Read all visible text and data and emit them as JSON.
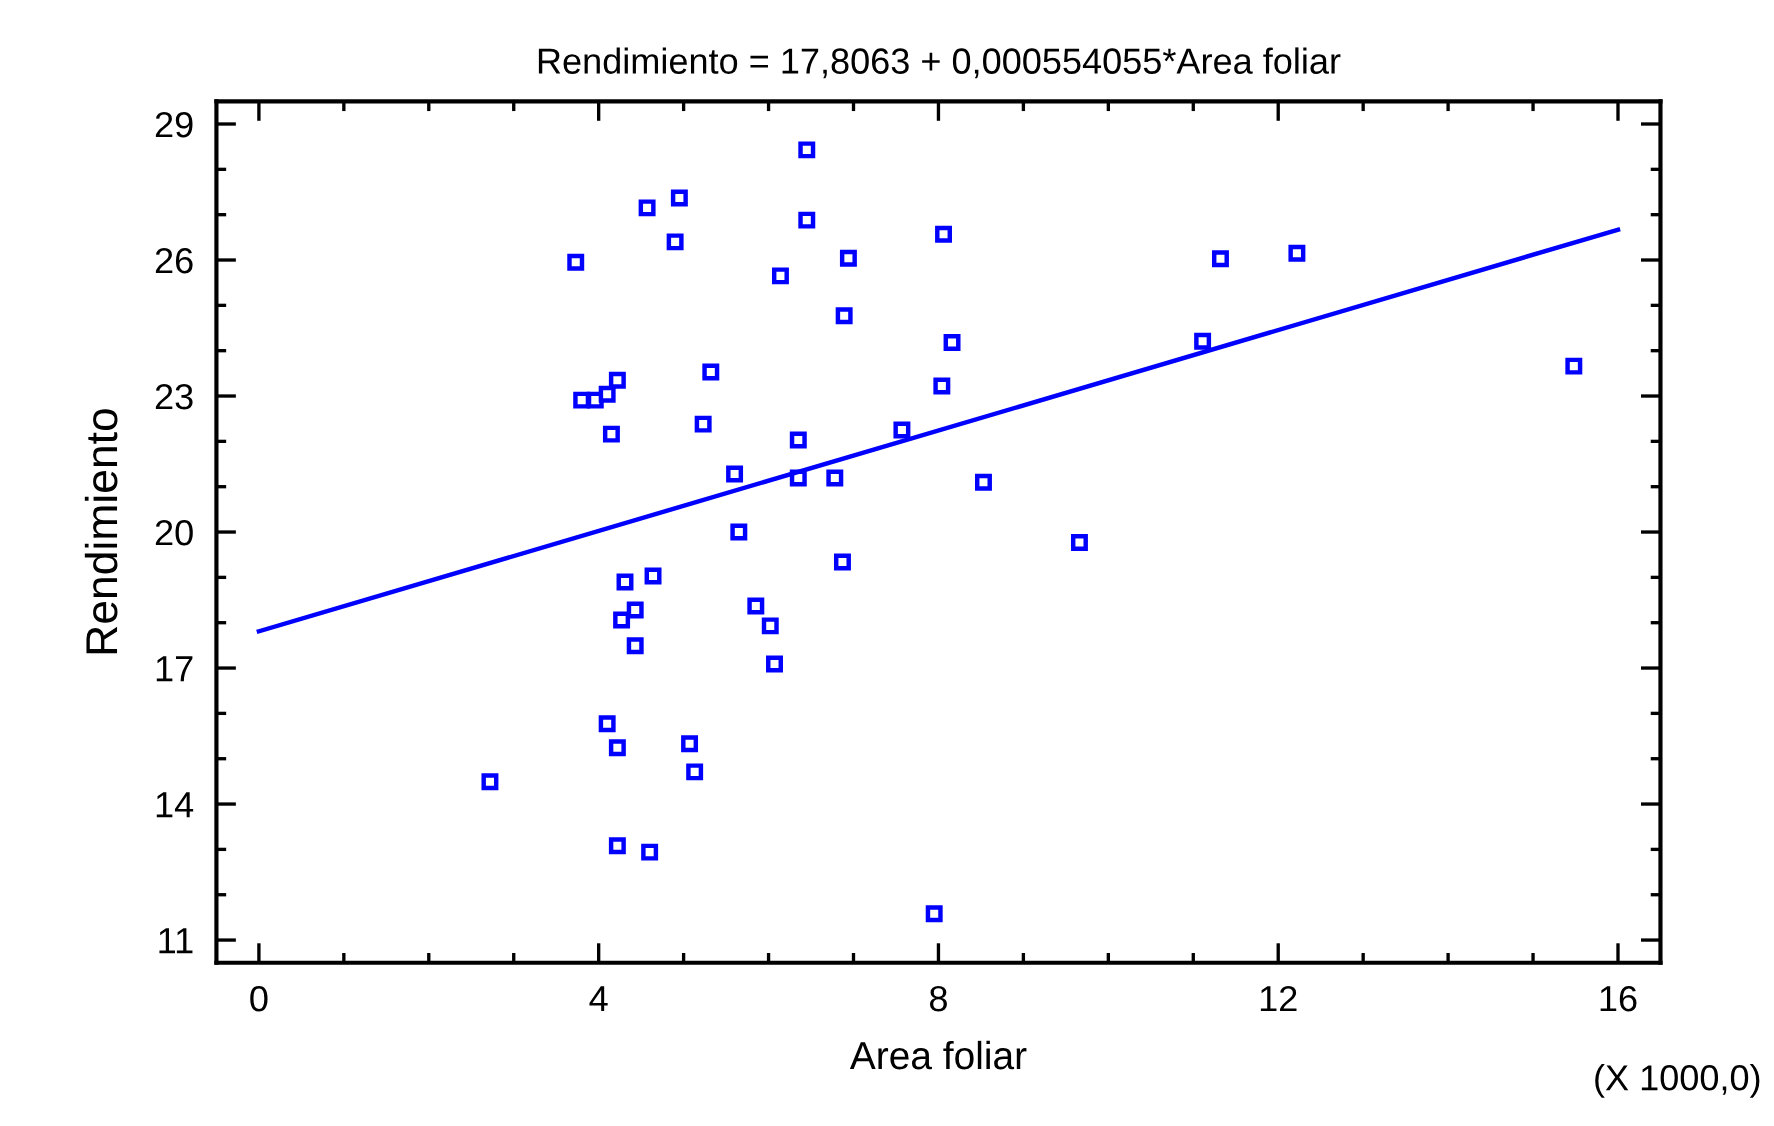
{
  "chart_data": {
    "type": "scatter",
    "title": "Rendimiento = 17,8063 + 0,000554055*Area foliar",
    "xlabel": "Area foliar",
    "ylabel": "Rendimiento",
    "annotations": [
      "(X 1000,0)"
    ],
    "xlim": [
      -0.5,
      16.5
    ],
    "ylim": [
      10.5,
      29.5
    ],
    "xticks": [
      0,
      {
        "value": 1,
        "label": null
      },
      {
        "value": 2,
        "label": null
      },
      {
        "value": 3,
        "label": null
      },
      4,
      {
        "value": 5,
        "label": null
      },
      {
        "value": 6,
        "label": null
      },
      {
        "value": 7,
        "label": null
      },
      8,
      {
        "value": 9,
        "label": null
      },
      {
        "value": 10,
        "label": null
      },
      {
        "value": 11,
        "label": null
      },
      12,
      {
        "value": 13,
        "label": null
      },
      {
        "value": 14,
        "label": null
      },
      {
        "value": 15,
        "label": null
      },
      16
    ],
    "yticks": [
      11,
      {
        "value": 12,
        "label": null
      },
      {
        "value": 13,
        "label": null
      },
      14,
      {
        "value": 15,
        "label": null
      },
      {
        "value": 16,
        "label": null
      },
      17,
      {
        "value": 18,
        "label": null
      },
      {
        "value": 19,
        "label": null
      },
      20,
      {
        "value": 21,
        "label": null
      },
      {
        "value": 22,
        "label": null
      },
      23,
      {
        "value": 24,
        "label": null
      },
      {
        "value": 25,
        "label": null
      },
      26,
      {
        "value": 27,
        "label": null
      },
      {
        "value": 28,
        "label": null
      },
      29
    ],
    "grid": false,
    "legend": false,
    "marker": "square",
    "series": [
      {
        "color": "#0000ff",
        "x": [
          3.73,
          2.72,
          3.8,
          3.96,
          4.1,
          4.22,
          4.15,
          4.57,
          4.95,
          4.9,
          5.32,
          5.23,
          6.45,
          6.45,
          6.14,
          6.94,
          6.89,
          8.06,
          8.16,
          8.04,
          7.57,
          6.35,
          5.6,
          6.35,
          6.78,
          8.53,
          5.65,
          6.87,
          4.31,
          4.64,
          4.43,
          4.27,
          4.43,
          5.85,
          6.02,
          6.07,
          4.1,
          4.22,
          5.07,
          5.13,
          4.22,
          4.6,
          7.95,
          9.66,
          11.11,
          11.32,
          12.22,
          15.48
        ],
        "values": [
          25.95,
          14.49,
          22.91,
          22.91,
          23.04,
          23.35,
          22.16,
          27.15,
          27.37,
          26.4,
          23.53,
          22.38,
          28.43,
          26.88,
          25.65,
          26.04,
          24.77,
          26.57,
          24.18,
          23.22,
          22.25,
          22.03,
          21.28,
          21.19,
          21.19,
          21.1,
          20.0,
          19.34,
          18.9,
          19.03,
          18.28,
          18.06,
          17.49,
          18.37,
          17.93,
          17.09,
          15.77,
          15.24,
          15.33,
          14.71,
          13.08,
          12.94,
          11.58,
          19.77,
          24.21,
          26.03,
          26.15,
          23.66
        ]
      },
      {
        "type": "line",
        "color": "#0000ff",
        "marker": "none",
        "line_style": "solid",
        "x": [
          0,
          16
        ],
        "values": [
          17.81,
          26.67
        ]
      }
    ]
  }
}
